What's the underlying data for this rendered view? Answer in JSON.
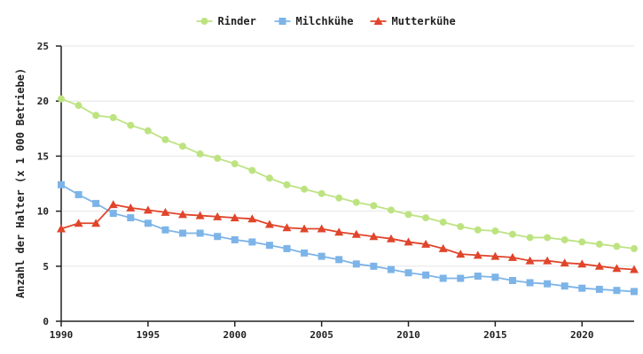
{
  "chart_data": {
    "type": "line",
    "title": "",
    "xlabel": "",
    "ylabel": "Anzahl der Halter (x 1 000 Betriebe)",
    "xlim": [
      1990,
      2023
    ],
    "ylim": [
      0,
      25
    ],
    "xticks": [
      1990,
      1995,
      2000,
      2005,
      2010,
      2015,
      2020
    ],
    "yticks": [
      0,
      5,
      10,
      15,
      20,
      25
    ],
    "grid": true,
    "legend_position": "top-center",
    "x": [
      1990,
      1991,
      1992,
      1993,
      1994,
      1995,
      1996,
      1997,
      1998,
      1999,
      2000,
      2001,
      2002,
      2003,
      2004,
      2005,
      2006,
      2007,
      2008,
      2009,
      2010,
      2011,
      2012,
      2013,
      2014,
      2015,
      2016,
      2017,
      2018,
      2019,
      2020,
      2021,
      2022,
      2023
    ],
    "series": [
      {
        "name": "Rinder",
        "color": "#bde381",
        "marker": "circle",
        "values": [
          20.2,
          19.6,
          18.7,
          18.5,
          17.8,
          17.3,
          16.5,
          15.9,
          15.2,
          14.8,
          14.3,
          13.7,
          13.0,
          12.4,
          12.0,
          11.6,
          11.2,
          10.8,
          10.5,
          10.1,
          9.7,
          9.4,
          9.0,
          8.6,
          8.3,
          8.2,
          7.9,
          7.6,
          7.6,
          7.4,
          7.2,
          7.0,
          6.8,
          6.6
        ]
      },
      {
        "name": "Milchkühe",
        "color": "#7db4e8",
        "marker": "square",
        "values": [
          12.4,
          11.5,
          10.7,
          9.8,
          9.4,
          8.9,
          8.3,
          8.0,
          8.0,
          7.7,
          7.4,
          7.2,
          6.9,
          6.6,
          6.2,
          5.9,
          5.6,
          5.2,
          5.0,
          4.7,
          4.4,
          4.2,
          3.9,
          3.9,
          4.1,
          4.0,
          3.7,
          3.5,
          3.4,
          3.2,
          3.0,
          2.9,
          2.8,
          2.7
        ]
      },
      {
        "name": "Mutterkühe",
        "color": "#e0452b",
        "marker": "triangle",
        "values": [
          8.4,
          8.9,
          8.9,
          10.6,
          10.3,
          10.1,
          9.9,
          9.7,
          9.6,
          9.5,
          9.4,
          9.3,
          8.8,
          8.5,
          8.4,
          8.4,
          8.1,
          7.9,
          7.7,
          7.5,
          7.2,
          7.0,
          6.6,
          6.1,
          6.0,
          5.9,
          5.8,
          5.5,
          5.5,
          5.3,
          5.2,
          5.0,
          4.8,
          4.7
        ]
      }
    ]
  }
}
